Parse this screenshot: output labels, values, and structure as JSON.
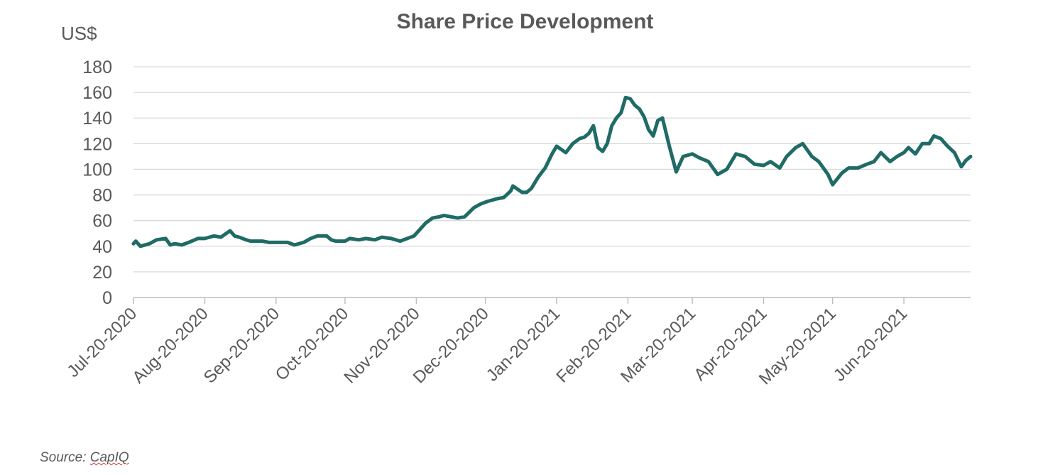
{
  "chart_data": {
    "type": "line",
    "title": "Share Price Development",
    "ylabel": "US$",
    "xlabel": "",
    "ylim": [
      0,
      180
    ],
    "yticks": [
      0,
      20,
      40,
      60,
      80,
      100,
      120,
      140,
      160,
      180
    ],
    "xticks": [
      "Jul-20-2020",
      "Aug-20-2020",
      "Sep-20-2020",
      "Oct-20-2020",
      "Nov-20-2020",
      "Dec-20-2020",
      "Jan-20-2021",
      "Feb-20-2021",
      "Mar-20-2021",
      "Apr-20-2021",
      "May-20-2021",
      "Jun-20-2021"
    ],
    "grid": true,
    "legend": "none",
    "line_color": "#1f6b66",
    "series": [
      {
        "x": [
          "2020-07-20",
          "2020-07-21",
          "2020-07-23",
          "2020-07-27",
          "2020-07-30",
          "2020-08-03",
          "2020-08-05",
          "2020-08-07",
          "2020-08-10",
          "2020-08-13",
          "2020-08-17",
          "2020-08-20",
          "2020-08-24",
          "2020-08-27",
          "2020-08-31",
          "2020-09-02",
          "2020-09-04",
          "2020-09-07",
          "2020-09-09",
          "2020-09-11",
          "2020-09-14",
          "2020-09-17",
          "2020-09-21",
          "2020-09-25",
          "2020-09-28",
          "2020-10-02",
          "2020-10-05",
          "2020-10-08",
          "2020-10-12",
          "2020-10-14",
          "2020-10-16",
          "2020-10-20",
          "2020-10-22",
          "2020-10-26",
          "2020-10-29",
          "2020-11-02",
          "2020-11-05",
          "2020-11-09",
          "2020-11-13",
          "2020-11-16",
          "2020-11-19",
          "2020-11-20",
          "2020-11-24",
          "2020-11-27",
          "2020-11-30",
          "2020-12-02",
          "2020-12-05",
          "2020-12-08",
          "2020-12-11",
          "2020-12-15",
          "2020-12-18",
          "2020-12-21",
          "2020-12-25",
          "2020-12-28",
          "2020-12-31",
          "2021-01-01",
          "2021-01-05",
          "2021-01-07",
          "2021-01-09",
          "2021-01-12",
          "2021-01-15",
          "2021-01-18",
          "2021-01-20",
          "2021-01-24",
          "2021-01-27",
          "2021-01-30",
          "2021-02-01",
          "2021-02-03",
          "2021-02-05",
          "2021-02-07",
          "2021-02-09",
          "2021-02-11",
          "2021-02-13",
          "2021-02-15",
          "2021-02-17",
          "2021-02-19",
          "2021-02-21",
          "2021-02-23",
          "2021-02-25",
          "2021-02-27",
          "2021-03-01",
          "2021-03-03",
          "2021-03-05",
          "2021-03-07",
          "2021-03-10",
          "2021-03-13",
          "2021-03-16",
          "2021-03-20",
          "2021-03-23",
          "2021-03-27",
          "2021-03-31",
          "2021-04-04",
          "2021-04-08",
          "2021-04-12",
          "2021-04-16",
          "2021-04-20",
          "2021-04-23",
          "2021-04-27",
          "2021-04-30",
          "2021-05-04",
          "2021-05-07",
          "2021-05-11",
          "2021-05-14",
          "2021-05-16",
          "2021-05-18",
          "2021-05-20",
          "2021-05-24",
          "2021-05-27",
          "2021-05-31",
          "2021-06-04",
          "2021-06-07",
          "2021-06-10",
          "2021-06-14",
          "2021-06-17",
          "2021-06-20",
          "2021-06-22",
          "2021-06-25",
          "2021-06-28",
          "2021-07-01",
          "2021-07-03",
          "2021-07-06",
          "2021-07-09",
          "2021-07-12",
          "2021-07-15",
          "2021-07-17",
          "2021-07-19"
        ],
        "values": [
          42,
          44,
          40,
          42,
          45,
          46,
          41,
          42,
          41,
          43,
          46,
          46,
          48,
          47,
          52,
          48,
          47,
          45,
          44,
          44,
          44,
          43,
          43,
          43,
          41,
          43,
          46,
          48,
          48,
          45,
          44,
          44,
          46,
          45,
          46,
          45,
          47,
          46,
          44,
          46,
          48,
          50,
          58,
          62,
          63,
          64,
          63,
          62,
          63,
          70,
          73,
          75,
          77,
          78,
          83,
          87,
          82,
          82,
          85,
          94,
          101,
          112,
          118,
          113,
          120,
          124,
          125,
          128,
          134,
          117,
          114,
          120,
          134,
          140,
          144,
          156,
          155,
          150,
          147,
          141,
          131,
          126,
          138,
          140,
          118,
          98,
          110,
          112,
          109,
          106,
          96,
          100,
          112,
          110,
          104,
          103,
          106,
          101,
          110,
          117,
          120,
          110,
          106,
          101,
          96,
          88,
          97,
          101,
          101,
          104,
          106,
          113,
          106,
          110,
          113,
          117,
          112,
          120,
          120,
          126,
          124,
          118,
          113,
          102,
          107,
          110
        ]
      }
    ]
  },
  "source_prefix": "Source: ",
  "source_name": "CapIQ"
}
